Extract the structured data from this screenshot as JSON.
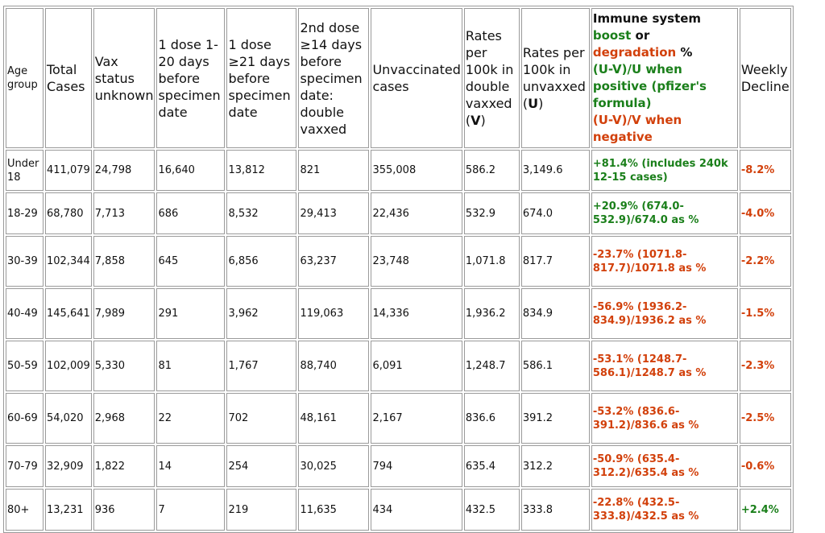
{
  "table": {
    "headers": {
      "age": "Age group",
      "total": "Total Cases",
      "unknown": "Vax status unknown",
      "dose1_early": "1 dose 1-20 days before specimen date",
      "dose1_late": "1 dose ≥21 days before specimen date",
      "dose2": "2nd dose ≥14 days before specimen date: double vaxxed",
      "unvax": "Unvaccinated cases",
      "rate_v_pre": "Rates per 100k in double vaxxed (",
      "rate_v_sym": "V",
      "rate_v_post": ")",
      "rate_u_pre": "Rates per 100k in unvaxxed (",
      "rate_u_sym": "U",
      "rate_u_post": ")",
      "immune_l1": "Immune system",
      "immune_boost": "boost",
      "immune_or": " or",
      "immune_degr": "degradation",
      "immune_pct": " %",
      "immune_formula_pos": "(U-V)/U when positive (pfizer's formula)",
      "immune_formula_neg": "(U-V)/V when negative",
      "weekly": "Weekly Decline"
    },
    "rows": [
      {
        "age": "Under 18",
        "total": "411,079",
        "unknown": "24,798",
        "d1a": "16,640",
        "d1b": "13,812",
        "d2": "821",
        "unvax": "355,008",
        "rv": "586.2",
        "ru": "3,149.6",
        "imm": "+81.4% (includes 240k 12-15 cases)",
        "weekly": "-8.2%"
      },
      {
        "age": "18-29",
        "total": "68,780",
        "unknown": "7,713",
        "d1a": "686",
        "d1b": "8,532",
        "d2": "29,413",
        "unvax": "22,436",
        "rv": "532.9",
        "ru": "674.0",
        "imm": "+20.9% (674.0-532.9)/674.0 as %",
        "weekly": "-4.0%"
      },
      {
        "age": "30-39",
        "total": "102,344",
        "unknown": "7,858",
        "d1a": "645",
        "d1b": "6,856",
        "d2": "63,237",
        "unvax": "23,748",
        "rv": "1,071.8",
        "ru": "817.7",
        "imm": "-23.7% (1071.8-817.7)/1071.8 as %",
        "weekly": "-2.2%"
      },
      {
        "age": "40-49",
        "total": "145,641",
        "unknown": "7,989",
        "d1a": "291",
        "d1b": "3,962",
        "d2": "119,063",
        "unvax": "14,336",
        "rv": "1,936.2",
        "ru": "834.9",
        "imm": "-56.9% (1936.2-834.9)/1936.2 as %",
        "weekly": "-1.5%"
      },
      {
        "age": "50-59",
        "total": "102,009",
        "unknown": "5,330",
        "d1a": "81",
        "d1b": "1,767",
        "d2": "88,740",
        "unvax": "6,091",
        "rv": "1,248.7",
        "ru": "586.1",
        "imm": "-53.1% (1248.7-586.1)/1248.7 as %",
        "weekly": "-2.3%"
      },
      {
        "age": "60-69",
        "total": "54,020",
        "unknown": "2,968",
        "d1a": "22",
        "d1b": "702",
        "d2": "48,161",
        "unvax": "2,167",
        "rv": "836.6",
        "ru": "391.2",
        "imm": "-53.2% (836.6-391.2)/836.6 as %",
        "weekly": "-2.5%"
      },
      {
        "age": "70-79",
        "total": "32,909",
        "unknown": "1,822",
        "d1a": "14",
        "d1b": "254",
        "d2": "30,025",
        "unvax": "794",
        "rv": "635.4",
        "ru": "312.2",
        "imm": "-50.9% (635.4-312.2)/635.4 as %",
        "weekly": "-0.6%"
      },
      {
        "age": "80+",
        "total": "13,231",
        "unknown": "936",
        "d1a": "7",
        "d1b": "219",
        "d2": "11,635",
        "unvax": "434",
        "rv": "432.5",
        "ru": "333.8",
        "imm": "-22.8% (432.5-333.8)/432.5 as %",
        "weekly": "+2.4%"
      }
    ],
    "row_colors": {
      "imm": [
        "green",
        "green",
        "red",
        "red",
        "red",
        "red",
        "red",
        "red"
      ],
      "weekly": [
        "red",
        "red",
        "red",
        "red",
        "red",
        "red",
        "red",
        "green"
      ]
    },
    "colors": {
      "green": "#1a7f1a",
      "red": "#d2400b",
      "border": "#9a9a9a"
    }
  }
}
